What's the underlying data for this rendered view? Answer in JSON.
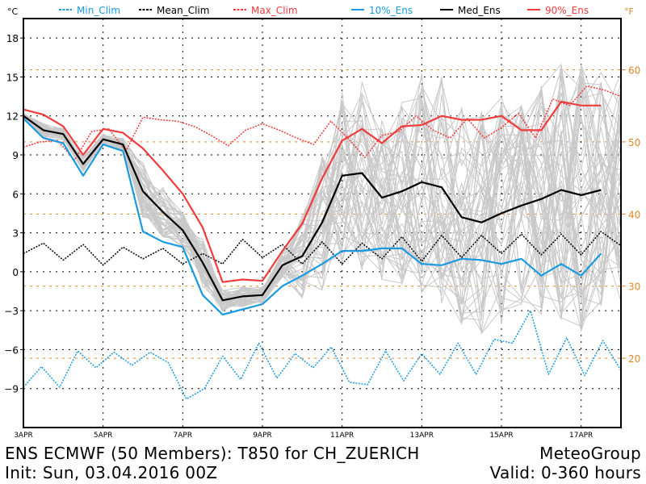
{
  "chart_data": {
    "type": "line",
    "title": "ENS ECMWF (50 Members): T850 for CH_ZUERICH",
    "subtitle": "Init: Sun, 03.04.2016 00Z",
    "provider": "MeteoGroup",
    "valid": "Valid: 0-360 hours",
    "left_unit": "°C",
    "right_unit": "°F",
    "x_step_hours": 12,
    "x_ticks": [
      "3APR",
      "5APR",
      "7APR",
      "9APR",
      "11APR",
      "13APR",
      "15APR",
      "17APR"
    ],
    "y_ticks_c": [
      18,
      15,
      12,
      9,
      6,
      3,
      0,
      -3,
      -6,
      -9
    ],
    "y_ticks_f": [
      60,
      50,
      40,
      30,
      20
    ],
    "ylim_c": [
      -12,
      19.5
    ],
    "xlim_hours": [
      0,
      360
    ],
    "grid": true,
    "legend": [
      {
        "name": "Min_Clim",
        "color": "#1a9ae0",
        "style": "dotted"
      },
      {
        "name": "Mean_Clim",
        "color": "#000000",
        "style": "dotted"
      },
      {
        "name": "Max_Clim",
        "color": "#f03c3c",
        "style": "dotted"
      },
      {
        "name": "10%_Ens",
        "color": "#1a9ae0",
        "style": "solid"
      },
      {
        "name": "Med_Ens",
        "color": "#000000",
        "style": "solid"
      },
      {
        "name": "90%_Ens",
        "color": "#f03c3c",
        "style": "solid"
      }
    ],
    "series": [
      {
        "name": "Min_Clim",
        "values": [
          -8.9,
          -7.3,
          -8.9,
          -6.1,
          -7.4,
          -6.2,
          -7.2,
          -6.2,
          -7.0,
          -9.8,
          -9.0,
          -6.5,
          -8.3,
          -5.5,
          -8.2,
          -6.3,
          -7.4,
          -5.8,
          -8.5,
          -8.7,
          -6.1,
          -8.4,
          -6.3,
          -7.9,
          -5.5,
          -7.9,
          -5.2,
          -5.5,
          -3.0,
          -7.9,
          -5.1,
          -8.0,
          -5.3,
          -7.6
        ]
      },
      {
        "name": "Mean_Clim",
        "values": [
          1.4,
          2.2,
          0.9,
          2.1,
          0.5,
          1.9,
          1.0,
          1.8,
          0.6,
          1.4,
          0.6,
          2.5,
          1.1,
          2.1,
          0.6,
          2.3,
          0.6,
          2.2,
          1.0,
          2.7,
          0.8,
          2.8,
          1.1,
          2.8,
          1.4,
          2.9,
          1.3,
          2.9,
          1.3,
          3.1,
          2.0
        ]
      },
      {
        "name": "Max_Clim",
        "values": [
          9.6,
          10.0,
          10.1,
          8.6,
          10.8,
          11.0,
          9.3,
          11.9,
          11.7,
          11.6,
          11.2,
          10.5,
          9.7,
          10.9,
          11.4,
          10.9,
          10.3,
          9.8,
          11.6,
          10.3,
          8.8,
          10.5,
          10.8,
          12.0,
          10.9,
          10.3,
          11.8,
          10.3,
          11.1,
          12.2,
          10.3,
          13.3,
          12.8,
          14.3,
          14.0,
          13.5
        ]
      },
      {
        "name": "10%_Ens",
        "values": [
          11.8,
          10.3,
          9.9,
          7.4,
          9.8,
          9.3,
          3.1,
          2.3,
          1.9,
          -1.8,
          -3.3,
          -2.9,
          -2.5,
          -1.1,
          -0.3,
          0.6,
          1.6,
          1.6,
          1.8,
          1.8,
          0.6,
          0.5,
          1.0,
          0.9,
          0.6,
          1.0,
          -0.3,
          0.6,
          -0.3,
          1.4
        ]
      },
      {
        "name": "Med_Ens",
        "values": [
          12.0,
          10.9,
          10.6,
          8.3,
          10.2,
          9.8,
          6.2,
          4.6,
          3.2,
          0.7,
          -2.2,
          -1.9,
          -1.8,
          0.5,
          1.2,
          3.8,
          7.4,
          7.6,
          5.7,
          6.2,
          6.9,
          6.5,
          4.2,
          3.8,
          4.5,
          5.1,
          5.6,
          6.3,
          5.9,
          6.3
        ]
      },
      {
        "name": "90%_Ens",
        "values": [
          12.5,
          12.1,
          11.2,
          9.0,
          11.0,
          10.7,
          9.5,
          7.8,
          6.0,
          3.4,
          -0.8,
          -0.6,
          -0.7,
          1.6,
          3.7,
          7.2,
          10.1,
          11.0,
          9.9,
          11.2,
          11.3,
          12.0,
          11.7,
          11.7,
          12.0,
          10.9,
          10.9,
          13.1,
          12.8,
          12.8
        ]
      }
    ],
    "ensemble_members": 50,
    "member_color": "#c8c8c8"
  }
}
